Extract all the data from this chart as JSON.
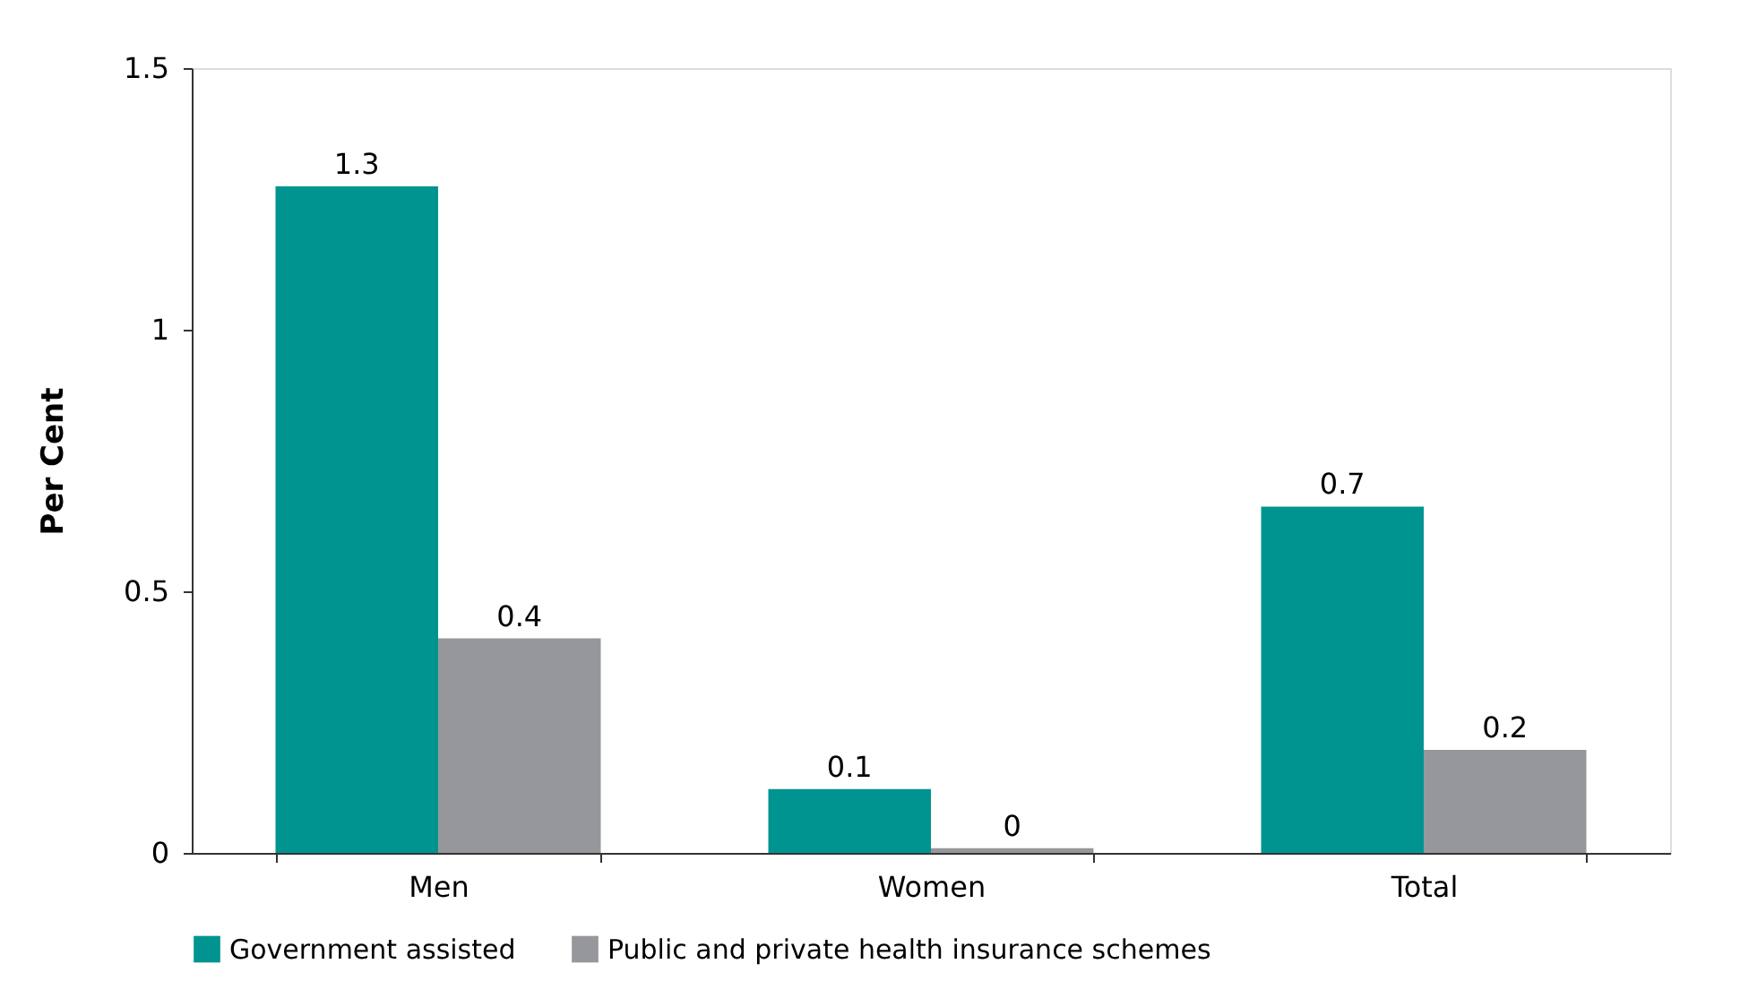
{
  "chart_data": {
    "type": "bar",
    "ylabel": "Per Cent",
    "categories": [
      "Men",
      "Women",
      "Total"
    ],
    "series": [
      {
        "name": "Government assisted",
        "color": "#009490",
        "values": [
          1.274,
          0.122,
          0.662
        ],
        "value_labels": [
          "1.3",
          "0.1",
          "0.7"
        ]
      },
      {
        "name": "Public and private health insurance schemes",
        "color": "#96979b",
        "values": [
          0.41,
          0.009,
          0.197
        ],
        "value_labels": [
          "0.4",
          "0",
          "0.2"
        ]
      }
    ],
    "ylim": [
      0,
      1.5
    ],
    "yticks": [
      0,
      0.5,
      1,
      1.5
    ],
    "grid": false,
    "legend": "bottom"
  }
}
